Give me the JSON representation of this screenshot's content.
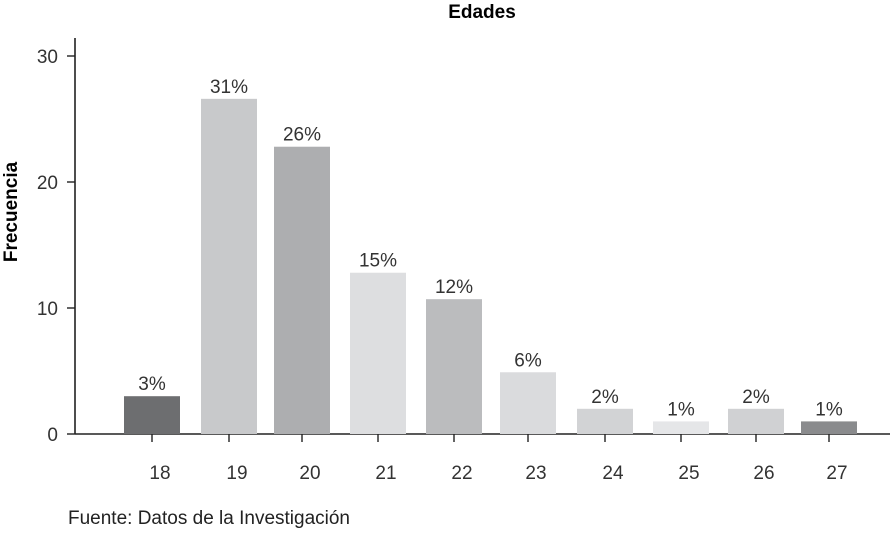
{
  "chart_data": {
    "type": "bar",
    "title": "Edades",
    "xlabel": "",
    "ylabel": "Frecuencia",
    "categories": [
      "18",
      "19",
      "20",
      "21",
      "22",
      "23",
      "24",
      "25",
      "26",
      "27"
    ],
    "values": [
      3,
      26.6,
      22.8,
      12.8,
      10.7,
      4.9,
      2,
      1,
      2,
      1
    ],
    "data_labels": [
      "3%",
      "31%",
      "26%",
      "15%",
      "12%",
      "6%",
      "2%",
      "1%",
      "2%",
      "1%"
    ],
    "bar_colors": [
      "#6d6e70",
      "#c8c9cb",
      "#adaeb0",
      "#dddee0",
      "#bbbcbe",
      "#dadbdd",
      "#d2d3d5",
      "#e5e6e8",
      "#d0d1d3",
      "#8a8b8d"
    ],
    "ylim": [
      0,
      30
    ],
    "yticks": [
      0,
      10,
      20,
      30
    ],
    "grid": false,
    "legend": "none"
  },
  "source_note": "Fuente: Datos de la Investigación"
}
